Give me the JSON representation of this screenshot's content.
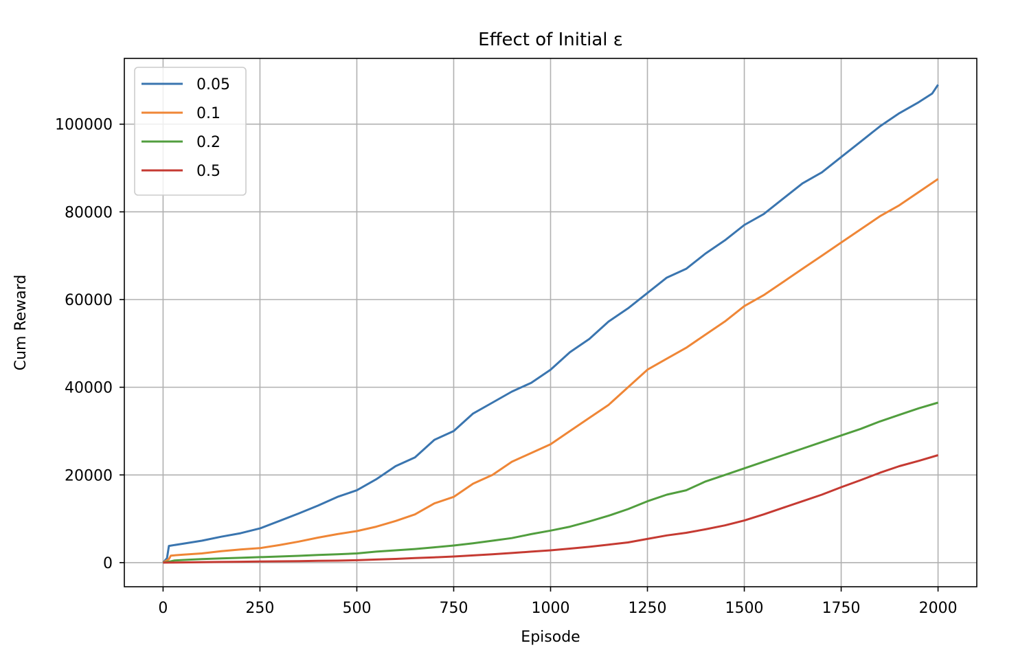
{
  "chart_data": {
    "type": "line",
    "title": "Effect of Initial ε",
    "xlabel": "Episode",
    "ylabel": "Cum Reward",
    "xlim": [
      -100,
      2100
    ],
    "ylim": [
      -5500,
      115000
    ],
    "xticks": [
      0,
      250,
      500,
      750,
      1000,
      1250,
      1500,
      1750,
      2000
    ],
    "xtick_labels": [
      "0",
      "250",
      "500",
      "750",
      "1000",
      "1250",
      "1500",
      "1750",
      "2000"
    ],
    "yticks": [
      0,
      20000,
      40000,
      60000,
      80000,
      100000
    ],
    "ytick_labels": [
      "0",
      "20000",
      "40000",
      "60000",
      "80000",
      "100000"
    ],
    "grid": true,
    "legend_position": "top-left",
    "series": [
      {
        "name": "0.05",
        "color": "#3a75af",
        "x": [
          0,
          10,
          15,
          50,
          100,
          150,
          200,
          250,
          300,
          350,
          400,
          450,
          500,
          550,
          600,
          650,
          700,
          750,
          800,
          850,
          900,
          950,
          1000,
          1050,
          1100,
          1150,
          1200,
          1250,
          1300,
          1350,
          1400,
          1450,
          1500,
          1550,
          1600,
          1650,
          1700,
          1750,
          1800,
          1850,
          1900,
          1950,
          1985,
          2000
        ],
        "y": [
          0,
          1000,
          3800,
          4300,
          5000,
          5900,
          6700,
          7800,
          9500,
          11200,
          13000,
          15000,
          16500,
          19000,
          22000,
          24000,
          28000,
          30000,
          34000,
          36500,
          39000,
          41000,
          44000,
          48000,
          51000,
          55000,
          58000,
          61500,
          65000,
          67000,
          70500,
          73500,
          77000,
          79500,
          83000,
          86500,
          89000,
          92500,
          96000,
          99500,
          102500,
          105000,
          107000,
          109000
        ]
      },
      {
        "name": "0.1",
        "color": "#ef8636",
        "x": [
          0,
          15,
          20,
          50,
          100,
          150,
          200,
          250,
          300,
          350,
          400,
          450,
          500,
          550,
          600,
          650,
          700,
          750,
          800,
          850,
          900,
          950,
          1000,
          1050,
          1100,
          1150,
          1200,
          1250,
          1300,
          1350,
          1400,
          1450,
          1500,
          1550,
          1600,
          1650,
          1700,
          1750,
          1800,
          1850,
          1900,
          1950,
          2000
        ],
        "y": [
          0,
          800,
          1600,
          1800,
          2100,
          2600,
          3000,
          3300,
          4000,
          4800,
          5700,
          6500,
          7200,
          8200,
          9500,
          11000,
          13500,
          15000,
          18000,
          20000,
          23000,
          25000,
          27000,
          30000,
          33000,
          36000,
          40000,
          44000,
          46500,
          49000,
          52000,
          55000,
          58500,
          61000,
          64000,
          67000,
          70000,
          73000,
          76000,
          79000,
          81500,
          84500,
          87500
        ]
      },
      {
        "name": "0.2",
        "color": "#519e3e",
        "x": [
          0,
          20,
          30,
          50,
          100,
          150,
          200,
          250,
          300,
          350,
          400,
          450,
          500,
          550,
          600,
          650,
          700,
          750,
          800,
          850,
          900,
          950,
          1000,
          1050,
          1100,
          1150,
          1200,
          1250,
          1300,
          1350,
          1400,
          1450,
          1500,
          1550,
          1600,
          1650,
          1700,
          1750,
          1800,
          1850,
          1900,
          1950,
          2000
        ],
        "y": [
          0,
          300,
          500,
          600,
          800,
          950,
          1100,
          1250,
          1400,
          1550,
          1750,
          1900,
          2100,
          2500,
          2800,
          3100,
          3500,
          3900,
          4400,
          5000,
          5600,
          6500,
          7300,
          8200,
          9400,
          10700,
          12200,
          14000,
          15500,
          16500,
          18500,
          20000,
          21500,
          23000,
          24500,
          26000,
          27500,
          29000,
          30500,
          32200,
          33700,
          35200,
          36500
        ]
      },
      {
        "name": "0.5",
        "color": "#c53a32",
        "x": [
          0,
          50,
          100,
          150,
          200,
          250,
          300,
          350,
          400,
          450,
          500,
          550,
          600,
          650,
          700,
          750,
          800,
          850,
          900,
          950,
          1000,
          1050,
          1100,
          1150,
          1200,
          1250,
          1300,
          1350,
          1400,
          1450,
          1500,
          1550,
          1600,
          1650,
          1700,
          1750,
          1800,
          1850,
          1900,
          1950,
          2000
        ],
        "y": [
          0,
          50,
          100,
          150,
          200,
          250,
          300,
          350,
          400,
          450,
          550,
          700,
          850,
          1050,
          1200,
          1400,
          1650,
          1900,
          2200,
          2500,
          2800,
          3200,
          3600,
          4100,
          4600,
          5400,
          6200,
          6800,
          7600,
          8500,
          9600,
          11000,
          12500,
          14000,
          15500,
          17200,
          18800,
          20500,
          22000,
          23200,
          24500
        ]
      }
    ]
  }
}
